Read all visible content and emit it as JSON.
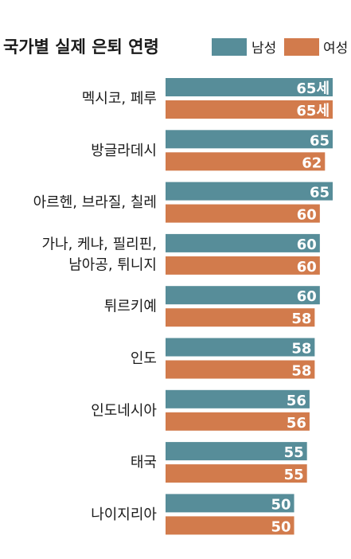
{
  "chart_data": {
    "type": "bar",
    "orientation": "horizontal",
    "title": "국가별 실제 은퇴 연령",
    "xlabel": "",
    "ylabel": "",
    "xlim": [
      0,
      66
    ],
    "grid": false,
    "legend_position": "top-right",
    "colors": {
      "남성": "#578d99",
      "여성": "#d27b4c"
    },
    "categories": [
      [
        "멕시코, 페루"
      ],
      [
        "방글라데시"
      ],
      [
        "아르헨, 브라질, 칠레"
      ],
      [
        "가나, 케냐, 필리핀,",
        "남아공, 튀니지"
      ],
      [
        "튀르키예"
      ],
      [
        "인도"
      ],
      [
        "인도네시아"
      ],
      [
        "태국"
      ],
      [
        "나이지리아"
      ]
    ],
    "series": [
      {
        "name": "남성",
        "values": [
          65,
          65,
          65,
          60,
          60,
          58,
          56,
          55,
          50
        ],
        "labels": [
          "65세",
          "65",
          "65",
          "60",
          "60",
          "58",
          "56",
          "55",
          "50"
        ]
      },
      {
        "name": "여성",
        "values": [
          65,
          62,
          60,
          60,
          58,
          58,
          56,
          55,
          50
        ],
        "labels": [
          "65세",
          "62",
          "60",
          "60",
          "58",
          "58",
          "56",
          "55",
          "50"
        ]
      }
    ]
  }
}
